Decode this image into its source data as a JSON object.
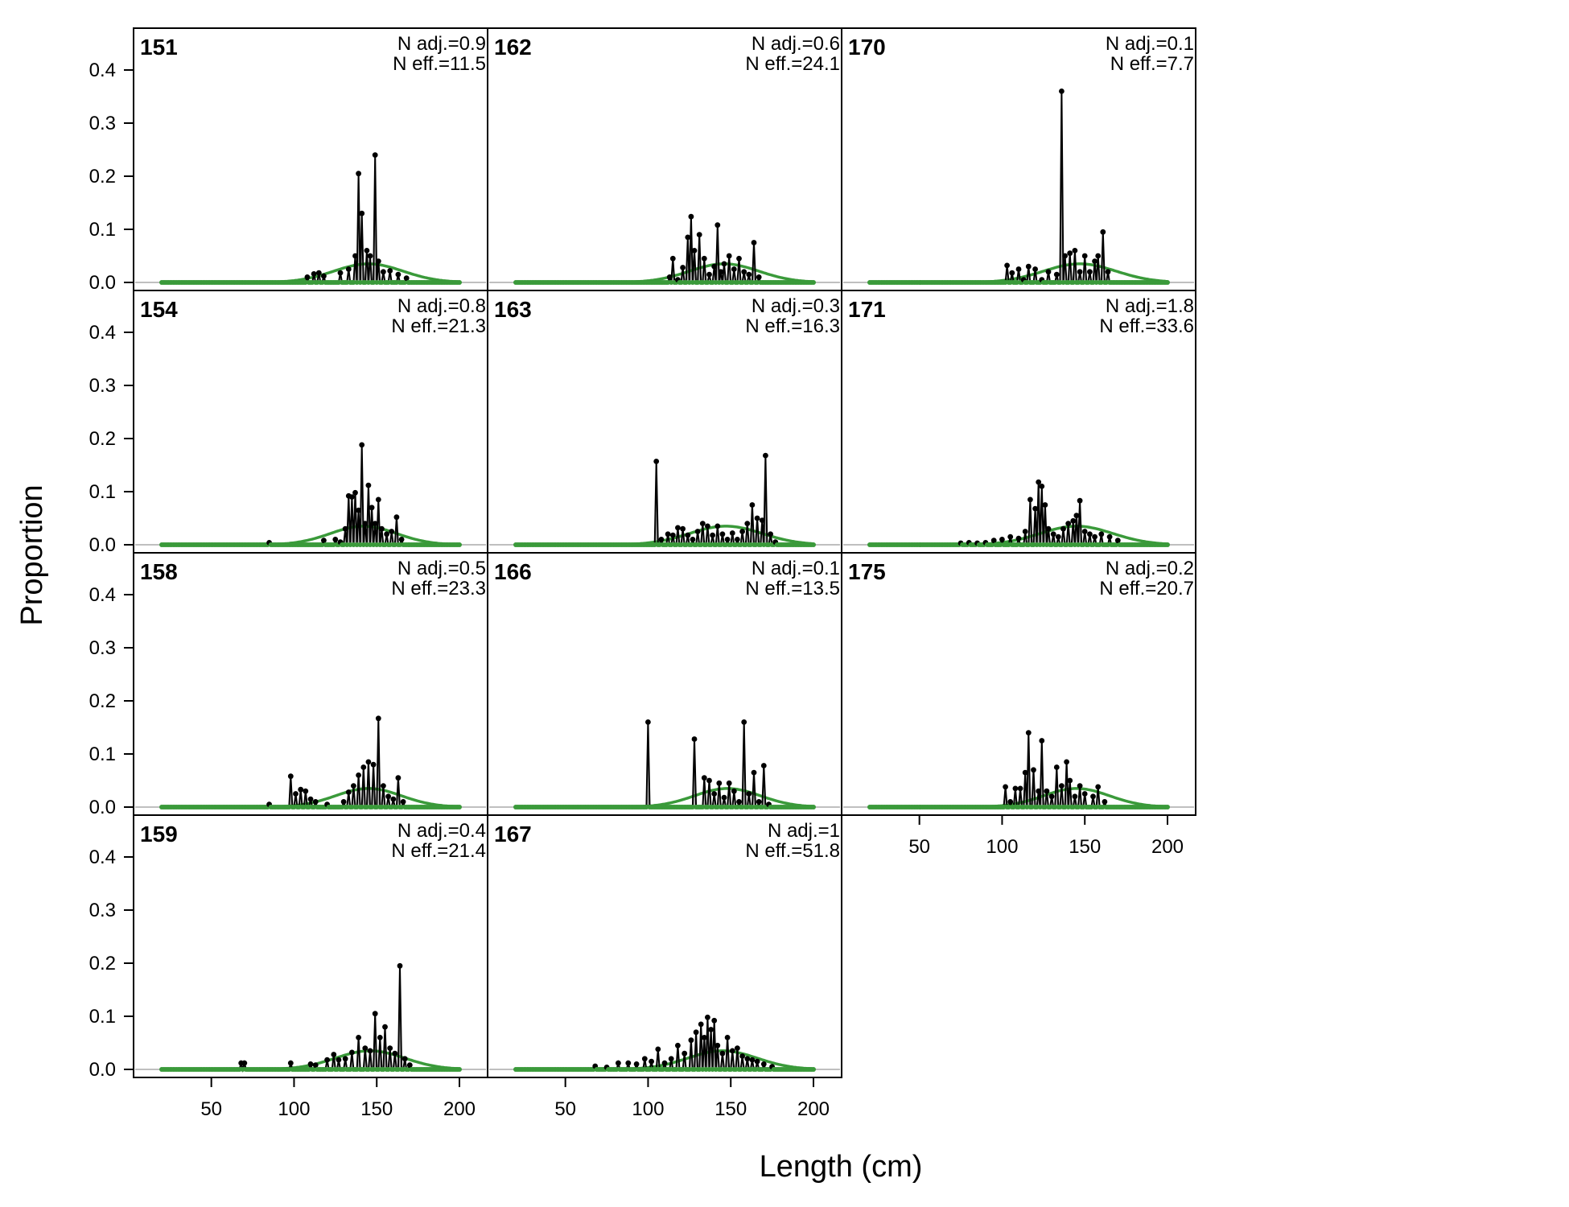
{
  "figure": {
    "ylabel": "Proportion",
    "xlabel": "Length (cm)"
  },
  "chart_data": {
    "type": "line",
    "xlabel": "Length (cm)",
    "ylabel": "Proportion",
    "xlim": [
      20,
      200
    ],
    "ylim": [
      0,
      0.46
    ],
    "x_ticks": [
      50,
      100,
      150,
      200
    ],
    "y_ticks": [
      0.0,
      0.1,
      0.2,
      0.3,
      0.4
    ],
    "y_tick_labels": [
      "0.0",
      "0.1",
      "0.2",
      "0.3",
      "0.4"
    ],
    "observed_style": "black points and line with grey fill",
    "expected_style": "green line",
    "colors": {
      "observed": "#000000",
      "observed_fill": "#b4b4b4",
      "expected": "#3a9a3a",
      "zero_line": "#aaaaaa"
    },
    "panels": [
      {
        "id": "151",
        "n_adj": "N adj.=0.9",
        "n_eff": "N eff.=11.5",
        "peaks": [
          [
            108,
            0.01
          ],
          [
            112,
            0.016
          ],
          [
            115,
            0.018
          ],
          [
            118,
            0.012
          ],
          [
            128,
            0.018
          ],
          [
            133,
            0.025
          ],
          [
            137,
            0.05
          ],
          [
            139,
            0.205
          ],
          [
            141,
            0.13
          ],
          [
            144,
            0.06
          ],
          [
            146,
            0.05
          ],
          [
            149,
            0.24
          ],
          [
            151,
            0.04
          ],
          [
            154,
            0.02
          ],
          [
            158,
            0.022
          ],
          [
            163,
            0.015
          ],
          [
            168,
            0.008
          ]
        ],
        "expected_mean": 145,
        "expected_sd": 21
      },
      {
        "id": "162",
        "n_adj": "N adj.=0.6",
        "n_eff": "N eff.=24.1",
        "peaks": [
          [
            113,
            0.01
          ],
          [
            115,
            0.045
          ],
          [
            118,
            0.005
          ],
          [
            121,
            0.028
          ],
          [
            124,
            0.085
          ],
          [
            126,
            0.124
          ],
          [
            128,
            0.06
          ],
          [
            131,
            0.09
          ],
          [
            134,
            0.045
          ],
          [
            137,
            0.015
          ],
          [
            140,
            0.03
          ],
          [
            142,
            0.108
          ],
          [
            144,
            0.02
          ],
          [
            146,
            0.035
          ],
          [
            149,
            0.05
          ],
          [
            152,
            0.025
          ],
          [
            155,
            0.045
          ],
          [
            158,
            0.02
          ],
          [
            161,
            0.015
          ],
          [
            164,
            0.075
          ],
          [
            167,
            0.01
          ]
        ],
        "expected_mean": 146,
        "expected_sd": 21
      },
      {
        "id": "170",
        "n_adj": "N adj.=0.1",
        "n_eff": "N eff.=7.7",
        "peaks": [
          [
            103,
            0.032
          ],
          [
            106,
            0.018
          ],
          [
            110,
            0.025
          ],
          [
            113,
            0.005
          ],
          [
            116,
            0.03
          ],
          [
            120,
            0.025
          ],
          [
            124,
            0.005
          ],
          [
            128,
            0.02
          ],
          [
            133,
            0.015
          ],
          [
            136,
            0.36
          ],
          [
            138,
            0.05
          ],
          [
            141,
            0.055
          ],
          [
            144,
            0.06
          ],
          [
            147,
            0.02
          ],
          [
            150,
            0.05
          ],
          [
            153,
            0.02
          ],
          [
            156,
            0.04
          ],
          [
            158,
            0.05
          ],
          [
            161,
            0.095
          ],
          [
            164,
            0.02
          ]
        ],
        "expected_mean": 147,
        "expected_sd": 22
      },
      {
        "id": "154",
        "n_adj": "N adj.=0.8",
        "n_eff": "N eff.=21.3",
        "peaks": [
          [
            85,
            0.004
          ],
          [
            118,
            0.008
          ],
          [
            125,
            0.01
          ],
          [
            128,
            0.005
          ],
          [
            131,
            0.03
          ],
          [
            133,
            0.092
          ],
          [
            135,
            0.09
          ],
          [
            137,
            0.098
          ],
          [
            139,
            0.065
          ],
          [
            141,
            0.188
          ],
          [
            143,
            0.04
          ],
          [
            145,
            0.112
          ],
          [
            147,
            0.07
          ],
          [
            149,
            0.04
          ],
          [
            151,
            0.085
          ],
          [
            153,
            0.03
          ],
          [
            156,
            0.02
          ],
          [
            159,
            0.025
          ],
          [
            162,
            0.052
          ],
          [
            165,
            0.01
          ]
        ],
        "expected_mean": 142,
        "expected_sd": 20
      },
      {
        "id": "163",
        "n_adj": "N adj.=0.3",
        "n_eff": "N eff.=16.3",
        "peaks": [
          [
            105,
            0.157
          ],
          [
            108,
            0.01
          ],
          [
            112,
            0.02
          ],
          [
            115,
            0.018
          ],
          [
            118,
            0.032
          ],
          [
            121,
            0.03
          ],
          [
            124,
            0.018
          ],
          [
            127,
            0.01
          ],
          [
            130,
            0.025
          ],
          [
            133,
            0.04
          ],
          [
            136,
            0.035
          ],
          [
            139,
            0.018
          ],
          [
            142,
            0.035
          ],
          [
            145,
            0.02
          ],
          [
            148,
            0.01
          ],
          [
            151,
            0.022
          ],
          [
            154,
            0.01
          ],
          [
            157,
            0.025
          ],
          [
            160,
            0.04
          ],
          [
            163,
            0.075
          ],
          [
            166,
            0.05
          ],
          [
            169,
            0.046
          ],
          [
            171,
            0.168
          ],
          [
            174,
            0.02
          ],
          [
            177,
            0.005
          ]
        ],
        "expected_mean": 147,
        "expected_sd": 22
      },
      {
        "id": "171",
        "n_adj": "N adj.=1.8",
        "n_eff": "N eff.=33.6",
        "peaks": [
          [
            75,
            0.003
          ],
          [
            80,
            0.004
          ],
          [
            85,
            0.003
          ],
          [
            90,
            0.004
          ],
          [
            95,
            0.008
          ],
          [
            100,
            0.01
          ],
          [
            105,
            0.015
          ],
          [
            110,
            0.012
          ],
          [
            114,
            0.025
          ],
          [
            117,
            0.085
          ],
          [
            120,
            0.068
          ],
          [
            122,
            0.118
          ],
          [
            124,
            0.11
          ],
          [
            126,
            0.075
          ],
          [
            128,
            0.03
          ],
          [
            131,
            0.02
          ],
          [
            134,
            0.015
          ],
          [
            137,
            0.03
          ],
          [
            140,
            0.04
          ],
          [
            143,
            0.045
          ],
          [
            145,
            0.055
          ],
          [
            147,
            0.083
          ],
          [
            150,
            0.025
          ],
          [
            153,
            0.02
          ],
          [
            156,
            0.015
          ],
          [
            160,
            0.02
          ],
          [
            165,
            0.015
          ],
          [
            170,
            0.008
          ]
        ],
        "expected_mean": 145,
        "expected_sd": 22
      },
      {
        "id": "158",
        "n_adj": "N adj.=0.5",
        "n_eff": "N eff.=23.3",
        "peaks": [
          [
            85,
            0.005
          ],
          [
            98,
            0.058
          ],
          [
            101,
            0.025
          ],
          [
            104,
            0.033
          ],
          [
            107,
            0.03
          ],
          [
            110,
            0.015
          ],
          [
            113,
            0.01
          ],
          [
            120,
            0.005
          ],
          [
            130,
            0.01
          ],
          [
            133,
            0.028
          ],
          [
            136,
            0.04
          ],
          [
            139,
            0.06
          ],
          [
            142,
            0.075
          ],
          [
            145,
            0.085
          ],
          [
            148,
            0.08
          ],
          [
            151,
            0.167
          ],
          [
            154,
            0.04
          ],
          [
            157,
            0.02
          ],
          [
            160,
            0.015
          ],
          [
            163,
            0.055
          ],
          [
            166,
            0.01
          ]
        ],
        "expected_mean": 145,
        "expected_sd": 20
      },
      {
        "id": "166",
        "n_adj": "N adj.=0.1",
        "n_eff": "N eff.=13.5",
        "peaks": [
          [
            100,
            0.16
          ],
          [
            128,
            0.128
          ],
          [
            134,
            0.055
          ],
          [
            137,
            0.05
          ],
          [
            140,
            0.025
          ],
          [
            143,
            0.045
          ],
          [
            146,
            0.018
          ],
          [
            149,
            0.045
          ],
          [
            152,
            0.03
          ],
          [
            155,
            0.01
          ],
          [
            158,
            0.16
          ],
          [
            161,
            0.025
          ],
          [
            164,
            0.065
          ],
          [
            167,
            0.01
          ],
          [
            170,
            0.078
          ],
          [
            173,
            0.005
          ]
        ],
        "expected_mean": 148,
        "expected_sd": 20
      },
      {
        "id": "175",
        "n_adj": "N adj.=0.2",
        "n_eff": "N eff.=20.7",
        "peaks": [
          [
            102,
            0.038
          ],
          [
            105,
            0.01
          ],
          [
            108,
            0.035
          ],
          [
            111,
            0.035
          ],
          [
            114,
            0.065
          ],
          [
            116,
            0.14
          ],
          [
            119,
            0.07
          ],
          [
            122,
            0.03
          ],
          [
            124,
            0.125
          ],
          [
            127,
            0.03
          ],
          [
            130,
            0.02
          ],
          [
            133,
            0.075
          ],
          [
            136,
            0.04
          ],
          [
            139,
            0.085
          ],
          [
            141,
            0.05
          ],
          [
            144,
            0.02
          ],
          [
            147,
            0.04
          ],
          [
            150,
            0.025
          ],
          [
            155,
            0.02
          ],
          [
            158,
            0.038
          ],
          [
            162,
            0.01
          ]
        ],
        "expected_mean": 145,
        "expected_sd": 20
      },
      {
        "id": "159",
        "n_adj": "N adj.=0.4",
        "n_eff": "N eff.=21.4",
        "peaks": [
          [
            68,
            0.012
          ],
          [
            70,
            0.012
          ],
          [
            98,
            0.012
          ],
          [
            110,
            0.01
          ],
          [
            113,
            0.008
          ],
          [
            120,
            0.018
          ],
          [
            124,
            0.028
          ],
          [
            127,
            0.018
          ],
          [
            131,
            0.02
          ],
          [
            135,
            0.032
          ],
          [
            139,
            0.06
          ],
          [
            143,
            0.04
          ],
          [
            146,
            0.035
          ],
          [
            149,
            0.105
          ],
          [
            152,
            0.06
          ],
          [
            155,
            0.08
          ],
          [
            158,
            0.04
          ],
          [
            161,
            0.03
          ],
          [
            164,
            0.195
          ],
          [
            167,
            0.02
          ],
          [
            170,
            0.008
          ]
        ],
        "expected_mean": 146,
        "expected_sd": 21
      },
      {
        "id": "167",
        "n_adj": "N adj.=1",
        "n_eff": "N eff.=51.8",
        "peaks": [
          [
            68,
            0.006
          ],
          [
            75,
            0.004
          ],
          [
            82,
            0.012
          ],
          [
            88,
            0.012
          ],
          [
            93,
            0.01
          ],
          [
            98,
            0.02
          ],
          [
            102,
            0.015
          ],
          [
            106,
            0.038
          ],
          [
            110,
            0.012
          ],
          [
            114,
            0.02
          ],
          [
            118,
            0.045
          ],
          [
            122,
            0.03
          ],
          [
            126,
            0.055
          ],
          [
            129,
            0.07
          ],
          [
            132,
            0.085
          ],
          [
            134,
            0.06
          ],
          [
            136,
            0.098
          ],
          [
            138,
            0.075
          ],
          [
            140,
            0.092
          ],
          [
            142,
            0.045
          ],
          [
            145,
            0.03
          ],
          [
            148,
            0.06
          ],
          [
            151,
            0.035
          ],
          [
            154,
            0.04
          ],
          [
            157,
            0.025
          ],
          [
            160,
            0.02
          ],
          [
            163,
            0.018
          ],
          [
            166,
            0.015
          ],
          [
            170,
            0.01
          ],
          [
            175,
            0.005
          ]
        ],
        "expected_mean": 145,
        "expected_sd": 21
      }
    ]
  }
}
